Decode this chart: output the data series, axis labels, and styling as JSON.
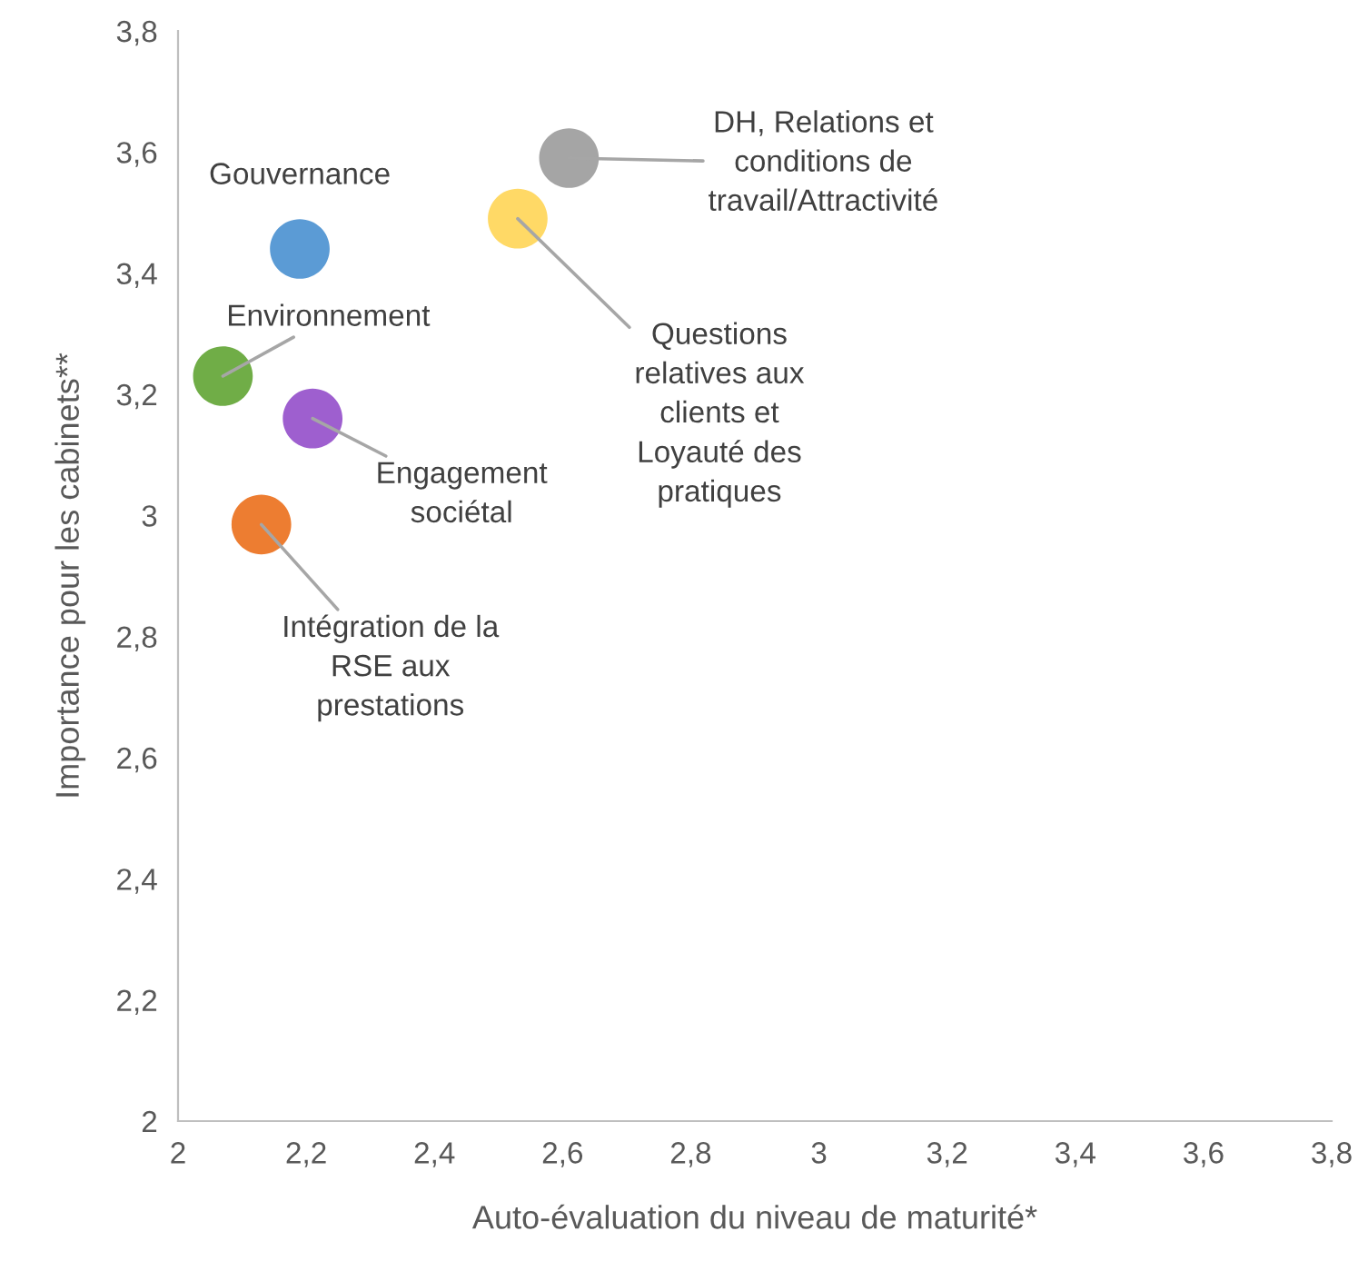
{
  "chart_data": {
    "type": "scatter",
    "xlabel": "Auto-évaluation du niveau de maturité*",
    "ylabel": "Importance pour les cabinets**",
    "xlim": [
      2,
      3.8
    ],
    "xticks": [
      2,
      {
        "value": 2.2,
        "label": "2,2"
      },
      {
        "value": 2.4,
        "label": "2,4"
      },
      {
        "value": 2.6,
        "label": "2,6"
      },
      {
        "value": 2.8,
        "label": "2,8"
      },
      3,
      {
        "value": 3.2,
        "label": "3,2"
      },
      {
        "value": 3.4,
        "label": "3,4"
      },
      {
        "value": 3.6,
        "label": "3,6"
      },
      {
        "value": 3.8,
        "label": "3,8"
      }
    ],
    "ylim": [
      2,
      3.8
    ],
    "yticks": [
      2,
      {
        "value": 2.2,
        "label": "2,2"
      },
      {
        "value": 2.4,
        "label": "2,4"
      },
      {
        "value": 2.6,
        "label": "2,6"
      },
      {
        "value": 2.8,
        "label": "2,8"
      },
      3,
      {
        "value": 3.2,
        "label": "3,2"
      },
      {
        "value": 3.4,
        "label": "3,4"
      },
      {
        "value": 3.6,
        "label": "3,6"
      },
      {
        "value": 3.8,
        "label": "3,8"
      }
    ],
    "grid": false,
    "marker": "circle",
    "series": [
      {
        "name": "Gouvernance",
        "color": "#5b9bd5",
        "x": [
          2.19
        ],
        "values": [
          3.44
        ]
      },
      {
        "name": "Environnement",
        "color": "#70ad47",
        "x": [
          2.07
        ],
        "values": [
          3.23
        ]
      },
      {
        "name": "Engagement\nsociétal",
        "color": "#9e5fcf",
        "x": [
          2.21
        ],
        "values": [
          3.16
        ]
      },
      {
        "name": "Intégration de la\nRSE aux\nprestations",
        "color": "#ed7d31",
        "x": [
          2.13
        ],
        "values": [
          2.985
        ]
      },
      {
        "name": "Questions\nrelatives aux\nclients et\nLoyauté des\npratiques",
        "color": "#ffd966",
        "x": [
          2.53
        ],
        "values": [
          3.49
        ]
      },
      {
        "name": "DH, Relations et\nconditions de\ntravail/Attractivité",
        "color": "#a5a5a5",
        "x": [
          2.61
        ],
        "values": [
          3.59
        ]
      }
    ]
  }
}
